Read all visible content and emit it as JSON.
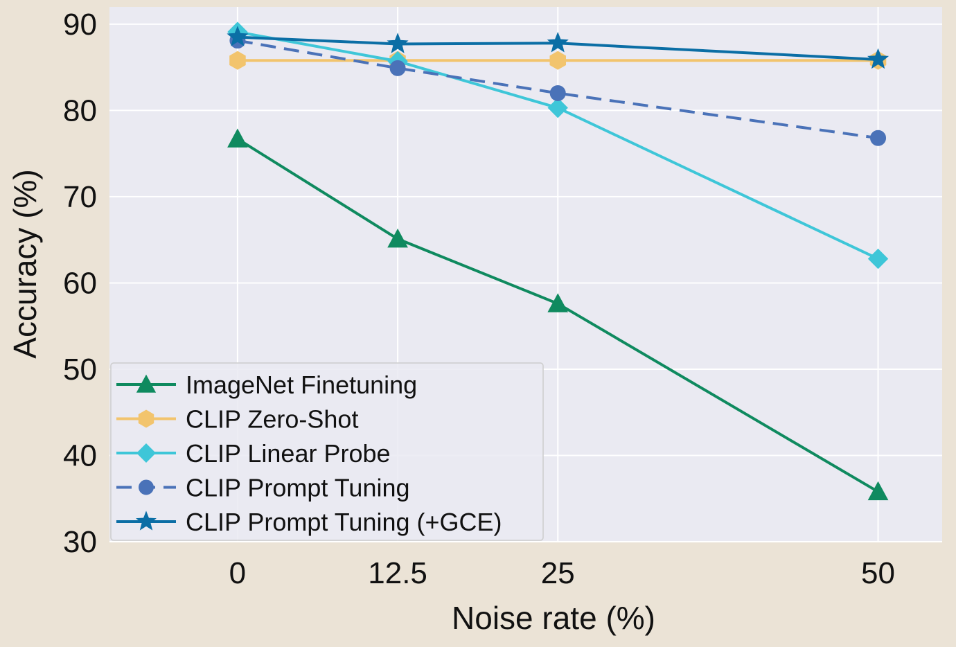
{
  "chart_data": {
    "type": "line",
    "title": "",
    "xlabel": "Noise rate (%)",
    "ylabel": "Accuracy (%)",
    "x": [
      0,
      12.5,
      25,
      50
    ],
    "xticks": [
      "0",
      "12.5",
      "25",
      "50"
    ],
    "yticks": [
      "30",
      "40",
      "50",
      "60",
      "70",
      "80",
      "90"
    ],
    "xlim": [
      -10,
      55
    ],
    "ylim": [
      30,
      92
    ],
    "grid": true,
    "legend_position": "bottom-left",
    "background": "#eaeaf2",
    "series": [
      {
        "name": "ImageNet Finetuning",
        "values": [
          76.7,
          65.1,
          57.6,
          35.8
        ],
        "color": "#0f8a5f",
        "marker": "triangle",
        "dashed": false
      },
      {
        "name": "CLIP Zero-Shot",
        "values": [
          85.8,
          85.8,
          85.8,
          85.8
        ],
        "color": "#f2c46d",
        "marker": "hexagon",
        "dashed": false
      },
      {
        "name": "CLIP Linear Probe",
        "values": [
          89.1,
          85.7,
          80.3,
          62.8
        ],
        "color": "#3ec6d8",
        "marker": "diamond",
        "dashed": false
      },
      {
        "name": "CLIP Prompt Tuning",
        "values": [
          88.1,
          84.9,
          82.0,
          76.8
        ],
        "color": "#4a72b8",
        "marker": "circle",
        "dashed": true
      },
      {
        "name": "CLIP Prompt Tuning (+GCE)",
        "values": [
          88.5,
          87.7,
          87.8,
          85.9
        ],
        "color": "#0b6ea5",
        "marker": "star",
        "dashed": false
      }
    ]
  }
}
